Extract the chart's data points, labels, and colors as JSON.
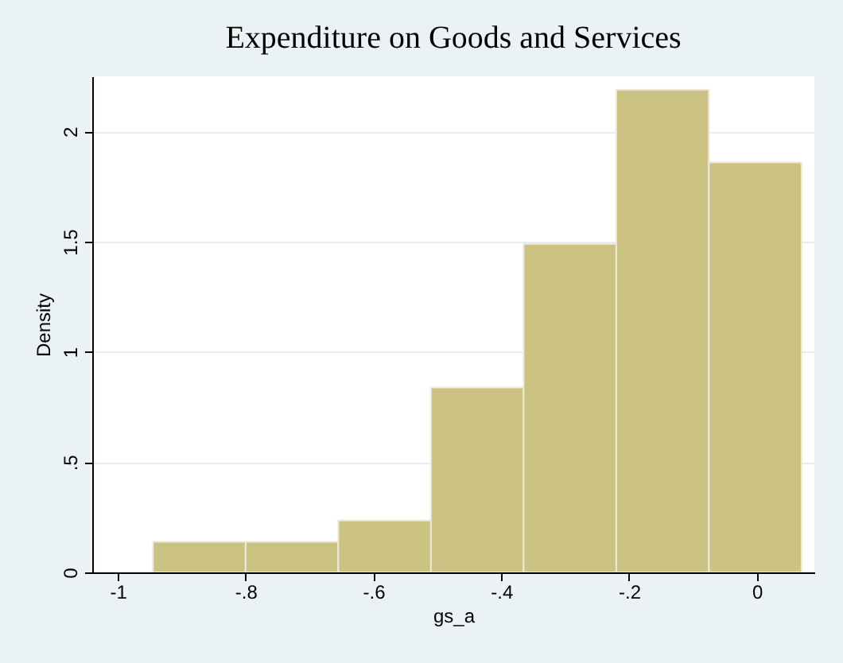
{
  "chart_data": {
    "type": "histogram",
    "title": "Expenditure on Goods and Services",
    "xlabel": "gs_a",
    "ylabel": "Density",
    "bins": [
      -0.945,
      -0.8,
      -0.655,
      -0.51,
      -0.365,
      -0.22,
      -0.075,
      0.07
    ],
    "values": [
      0.139,
      0.139,
      0.235,
      0.838,
      1.49,
      2.19,
      1.86
    ],
    "color": "#ccc282",
    "xlim": [
      -1.04,
      0.09
    ],
    "xticks": [
      -1,
      {
        "value": -0.8,
        "label": "-.8"
      },
      {
        "value": -0.6,
        "label": "-.6"
      },
      {
        "value": -0.4,
        "label": "-.4"
      },
      {
        "value": -0.2,
        "label": "-.2"
      },
      0
    ],
    "ylim": [
      0,
      2.25
    ],
    "yticks": [
      0,
      {
        "value": 0.5,
        "label": ".5"
      },
      1,
      {
        "value": 1.5,
        "label": "1.5"
      },
      2
    ],
    "grid": "y"
  }
}
